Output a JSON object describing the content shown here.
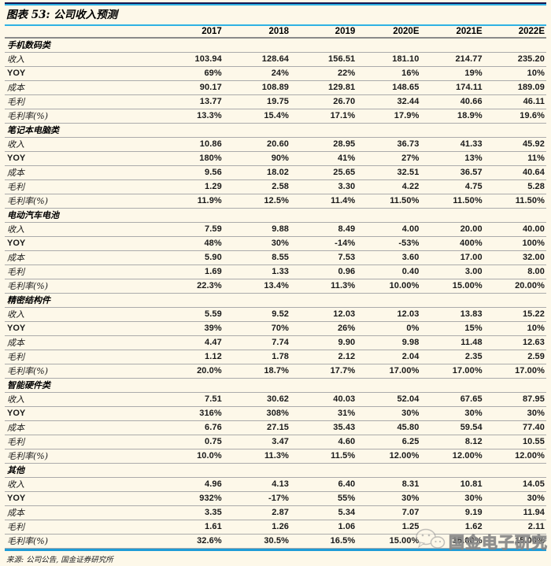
{
  "title": "图表 53: 公司收入预测",
  "years": [
    "2017",
    "2018",
    "2019",
    "2020E",
    "2021E",
    "2022E"
  ],
  "sections": [
    {
      "name": "手机数码类",
      "rows": [
        {
          "label": "收入",
          "values": [
            "103.94",
            "128.64",
            "156.51",
            "181.10",
            "214.77",
            "235.20"
          ]
        },
        {
          "label": "YOY",
          "values": [
            "69%",
            "24%",
            "22%",
            "16%",
            "19%",
            "10%"
          ]
        },
        {
          "label": "成本",
          "values": [
            "90.17",
            "108.89",
            "129.81",
            "148.65",
            "174.11",
            "189.09"
          ]
        },
        {
          "label": "毛利",
          "values": [
            "13.77",
            "19.75",
            "26.70",
            "32.44",
            "40.66",
            "46.11"
          ]
        },
        {
          "label": "毛利率(%)",
          "values": [
            "13.3%",
            "15.4%",
            "17.1%",
            "17.9%",
            "18.9%",
            "19.6%"
          ]
        }
      ]
    },
    {
      "name": "笔记本电脑类",
      "rows": [
        {
          "label": "收入",
          "values": [
            "10.86",
            "20.60",
            "28.95",
            "36.73",
            "41.33",
            "45.92"
          ]
        },
        {
          "label": "YOY",
          "values": [
            "180%",
            "90%",
            "41%",
            "27%",
            "13%",
            "11%"
          ]
        },
        {
          "label": "成本",
          "values": [
            "9.56",
            "18.02",
            "25.65",
            "32.51",
            "36.57",
            "40.64"
          ]
        },
        {
          "label": "毛利",
          "values": [
            "1.29",
            "2.58",
            "3.30",
            "4.22",
            "4.75",
            "5.28"
          ]
        },
        {
          "label": "毛利率(%)",
          "values": [
            "11.9%",
            "12.5%",
            "11.4%",
            "11.50%",
            "11.50%",
            "11.50%"
          ]
        }
      ]
    },
    {
      "name": "电动汽车电池",
      "rows": [
        {
          "label": "收入",
          "values": [
            "7.59",
            "9.88",
            "8.49",
            "4.00",
            "20.00",
            "40.00"
          ]
        },
        {
          "label": "YOY",
          "values": [
            "48%",
            "30%",
            "-14%",
            "-53%",
            "400%",
            "100%"
          ]
        },
        {
          "label": "成本",
          "values": [
            "5.90",
            "8.55",
            "7.53",
            "3.60",
            "17.00",
            "32.00"
          ]
        },
        {
          "label": "毛利",
          "values": [
            "1.69",
            "1.33",
            "0.96",
            "0.40",
            "3.00",
            "8.00"
          ]
        },
        {
          "label": "毛利率(%)",
          "values": [
            "22.3%",
            "13.4%",
            "11.3%",
            "10.00%",
            "15.00%",
            "20.00%"
          ]
        }
      ]
    },
    {
      "name": "精密结构件",
      "rows": [
        {
          "label": "收入",
          "values": [
            "5.59",
            "9.52",
            "12.03",
            "12.03",
            "13.83",
            "15.22"
          ]
        },
        {
          "label": "YOY",
          "values": [
            "39%",
            "70%",
            "26%",
            "0%",
            "15%",
            "10%"
          ]
        },
        {
          "label": "成本",
          "values": [
            "4.47",
            "7.74",
            "9.90",
            "9.98",
            "11.48",
            "12.63"
          ]
        },
        {
          "label": "毛利",
          "values": [
            "1.12",
            "1.78",
            "2.12",
            "2.04",
            "2.35",
            "2.59"
          ]
        },
        {
          "label": "毛利率(%)",
          "values": [
            "20.0%",
            "18.7%",
            "17.7%",
            "17.00%",
            "17.00%",
            "17.00%"
          ]
        }
      ]
    },
    {
      "name": "智能硬件类",
      "rows": [
        {
          "label": "收入",
          "values": [
            "7.51",
            "30.62",
            "40.03",
            "52.04",
            "67.65",
            "87.95"
          ]
        },
        {
          "label": "YOY",
          "values": [
            "316%",
            "308%",
            "31%",
            "30%",
            "30%",
            "30%"
          ]
        },
        {
          "label": "成本",
          "values": [
            "6.76",
            "27.15",
            "35.43",
            "45.80",
            "59.54",
            "77.40"
          ]
        },
        {
          "label": "毛利",
          "values": [
            "0.75",
            "3.47",
            "4.60",
            "6.25",
            "8.12",
            "10.55"
          ]
        },
        {
          "label": "毛利率(%)",
          "values": [
            "10.0%",
            "11.3%",
            "11.5%",
            "12.00%",
            "12.00%",
            "12.00%"
          ]
        }
      ]
    },
    {
      "name": "其他",
      "rows": [
        {
          "label": "收入",
          "values": [
            "4.96",
            "4.13",
            "6.40",
            "8.31",
            "10.81",
            "14.05"
          ]
        },
        {
          "label": "YOY",
          "values": [
            "932%",
            "-17%",
            "55%",
            "30%",
            "30%",
            "30%"
          ]
        },
        {
          "label": "成本",
          "values": [
            "3.35",
            "2.87",
            "5.34",
            "7.07",
            "9.19",
            "11.94"
          ]
        },
        {
          "label": "毛利",
          "values": [
            "1.61",
            "1.26",
            "1.06",
            "1.25",
            "1.62",
            "2.11"
          ]
        },
        {
          "label": "毛利率(%)",
          "values": [
            "32.6%",
            "30.5%",
            "16.5%",
            "15.00%",
            "15.00%",
            "15.00%"
          ]
        }
      ]
    }
  ],
  "footer": {
    "source": "来源: 公司公告, 国金证券研究所"
  },
  "watermark": {
    "text": "国金电子研究",
    "icon": "wechat-bubbles-icon"
  },
  "colors": {
    "background": "#FDF8E9",
    "rule_dark": "#17174F",
    "rule_cyan": "#2FB1E3",
    "rule_bottom": "#1E9CD7",
    "row_line": "#ABABAB",
    "header_line": "#8A8A8A",
    "text": "#1A1A1A",
    "watermark": "#9A9A9A"
  }
}
